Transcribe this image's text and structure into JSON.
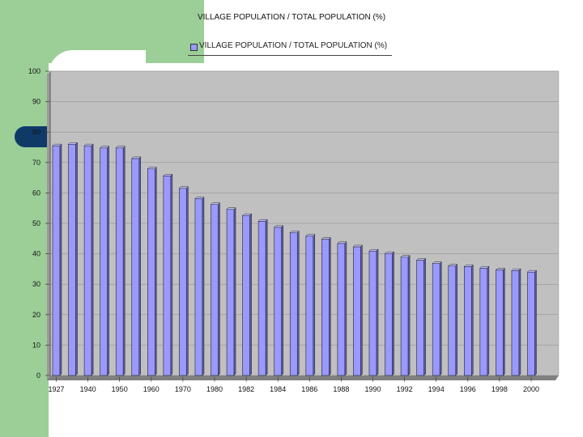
{
  "chart_data": {
    "type": "bar",
    "title": "VILLAGE POPULATION / TOTAL POPULATION (%)",
    "legend": [
      "VILLAGE POPULATION / TOTAL POPULATION (%)"
    ],
    "legend_position": "top",
    "ylim": [
      0,
      100
    ],
    "yticks": [
      "0",
      "10",
      "20",
      "30",
      "40",
      "50",
      "60",
      "70",
      "80",
      "90",
      "100"
    ],
    "xtick_labels": [
      "1927",
      "1940",
      "1950",
      "1960",
      "1970",
      "1980",
      "1982",
      "1984",
      "1986",
      "1988",
      "1990",
      "1992",
      "1994",
      "1996",
      "1998",
      "2000"
    ],
    "series": [
      {
        "values": [
          75.5,
          76.0,
          75.5,
          74.8,
          74.8,
          71.3,
          67.9,
          65.6,
          61.5,
          58.1,
          56.2,
          54.6,
          52.6,
          50.7,
          48.7,
          46.9,
          45.8,
          44.8,
          43.4,
          42.3,
          40.9,
          40.1,
          38.9,
          37.9,
          36.8,
          36.0,
          35.8,
          35.3,
          34.7,
          34.5,
          34.0
        ]
      }
    ],
    "colors": {
      "bar": "#9999ff",
      "plot_background": "#c0c0c0"
    },
    "grid": "y"
  }
}
